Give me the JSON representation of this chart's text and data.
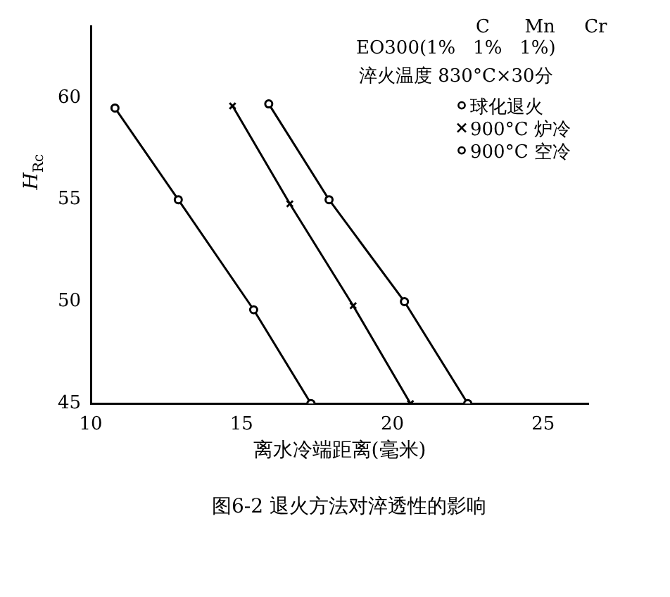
{
  "chart_data": {
    "type": "line",
    "title": "图6-2  退火方法对淬透性的影响",
    "xlabel": "离水冷端距离(毫米)",
    "ylabel": "H$_{Rc}$",
    "annotations": [
      "C      Mn     Cr",
      "EO300(1%   1%   1%)",
      "淬火温度 830°C×30分"
    ],
    "xlim": [
      10,
      26.5
    ],
    "xticks": [
      10,
      15,
      20,
      25
    ],
    "ylim": [
      45,
      63.5
    ],
    "yticks": [
      45,
      50,
      55,
      60
    ],
    "grid": false,
    "legend": "top right",
    "line_style": "solid",
    "series": [
      {
        "name": "球化退火",
        "color": "#000000",
        "marker": "circle",
        "x": [
          15.9,
          17.9,
          20.4,
          22.5
        ],
        "values": [
          59.7,
          55,
          50,
          45
        ]
      },
      {
        "name": "900°C 炉冷",
        "color": "#000000",
        "marker": "cross",
        "x": [
          14.7,
          16.6,
          18.7,
          20.6
        ],
        "values": [
          59.6,
          54.8,
          49.8,
          45
        ]
      },
      {
        "name": "900°C 空冷",
        "color": "#000000",
        "marker": "circle",
        "x": [
          10.8,
          12.9,
          15.4,
          17.3
        ],
        "values": [
          59.5,
          55,
          49.6,
          45
        ]
      }
    ]
  }
}
